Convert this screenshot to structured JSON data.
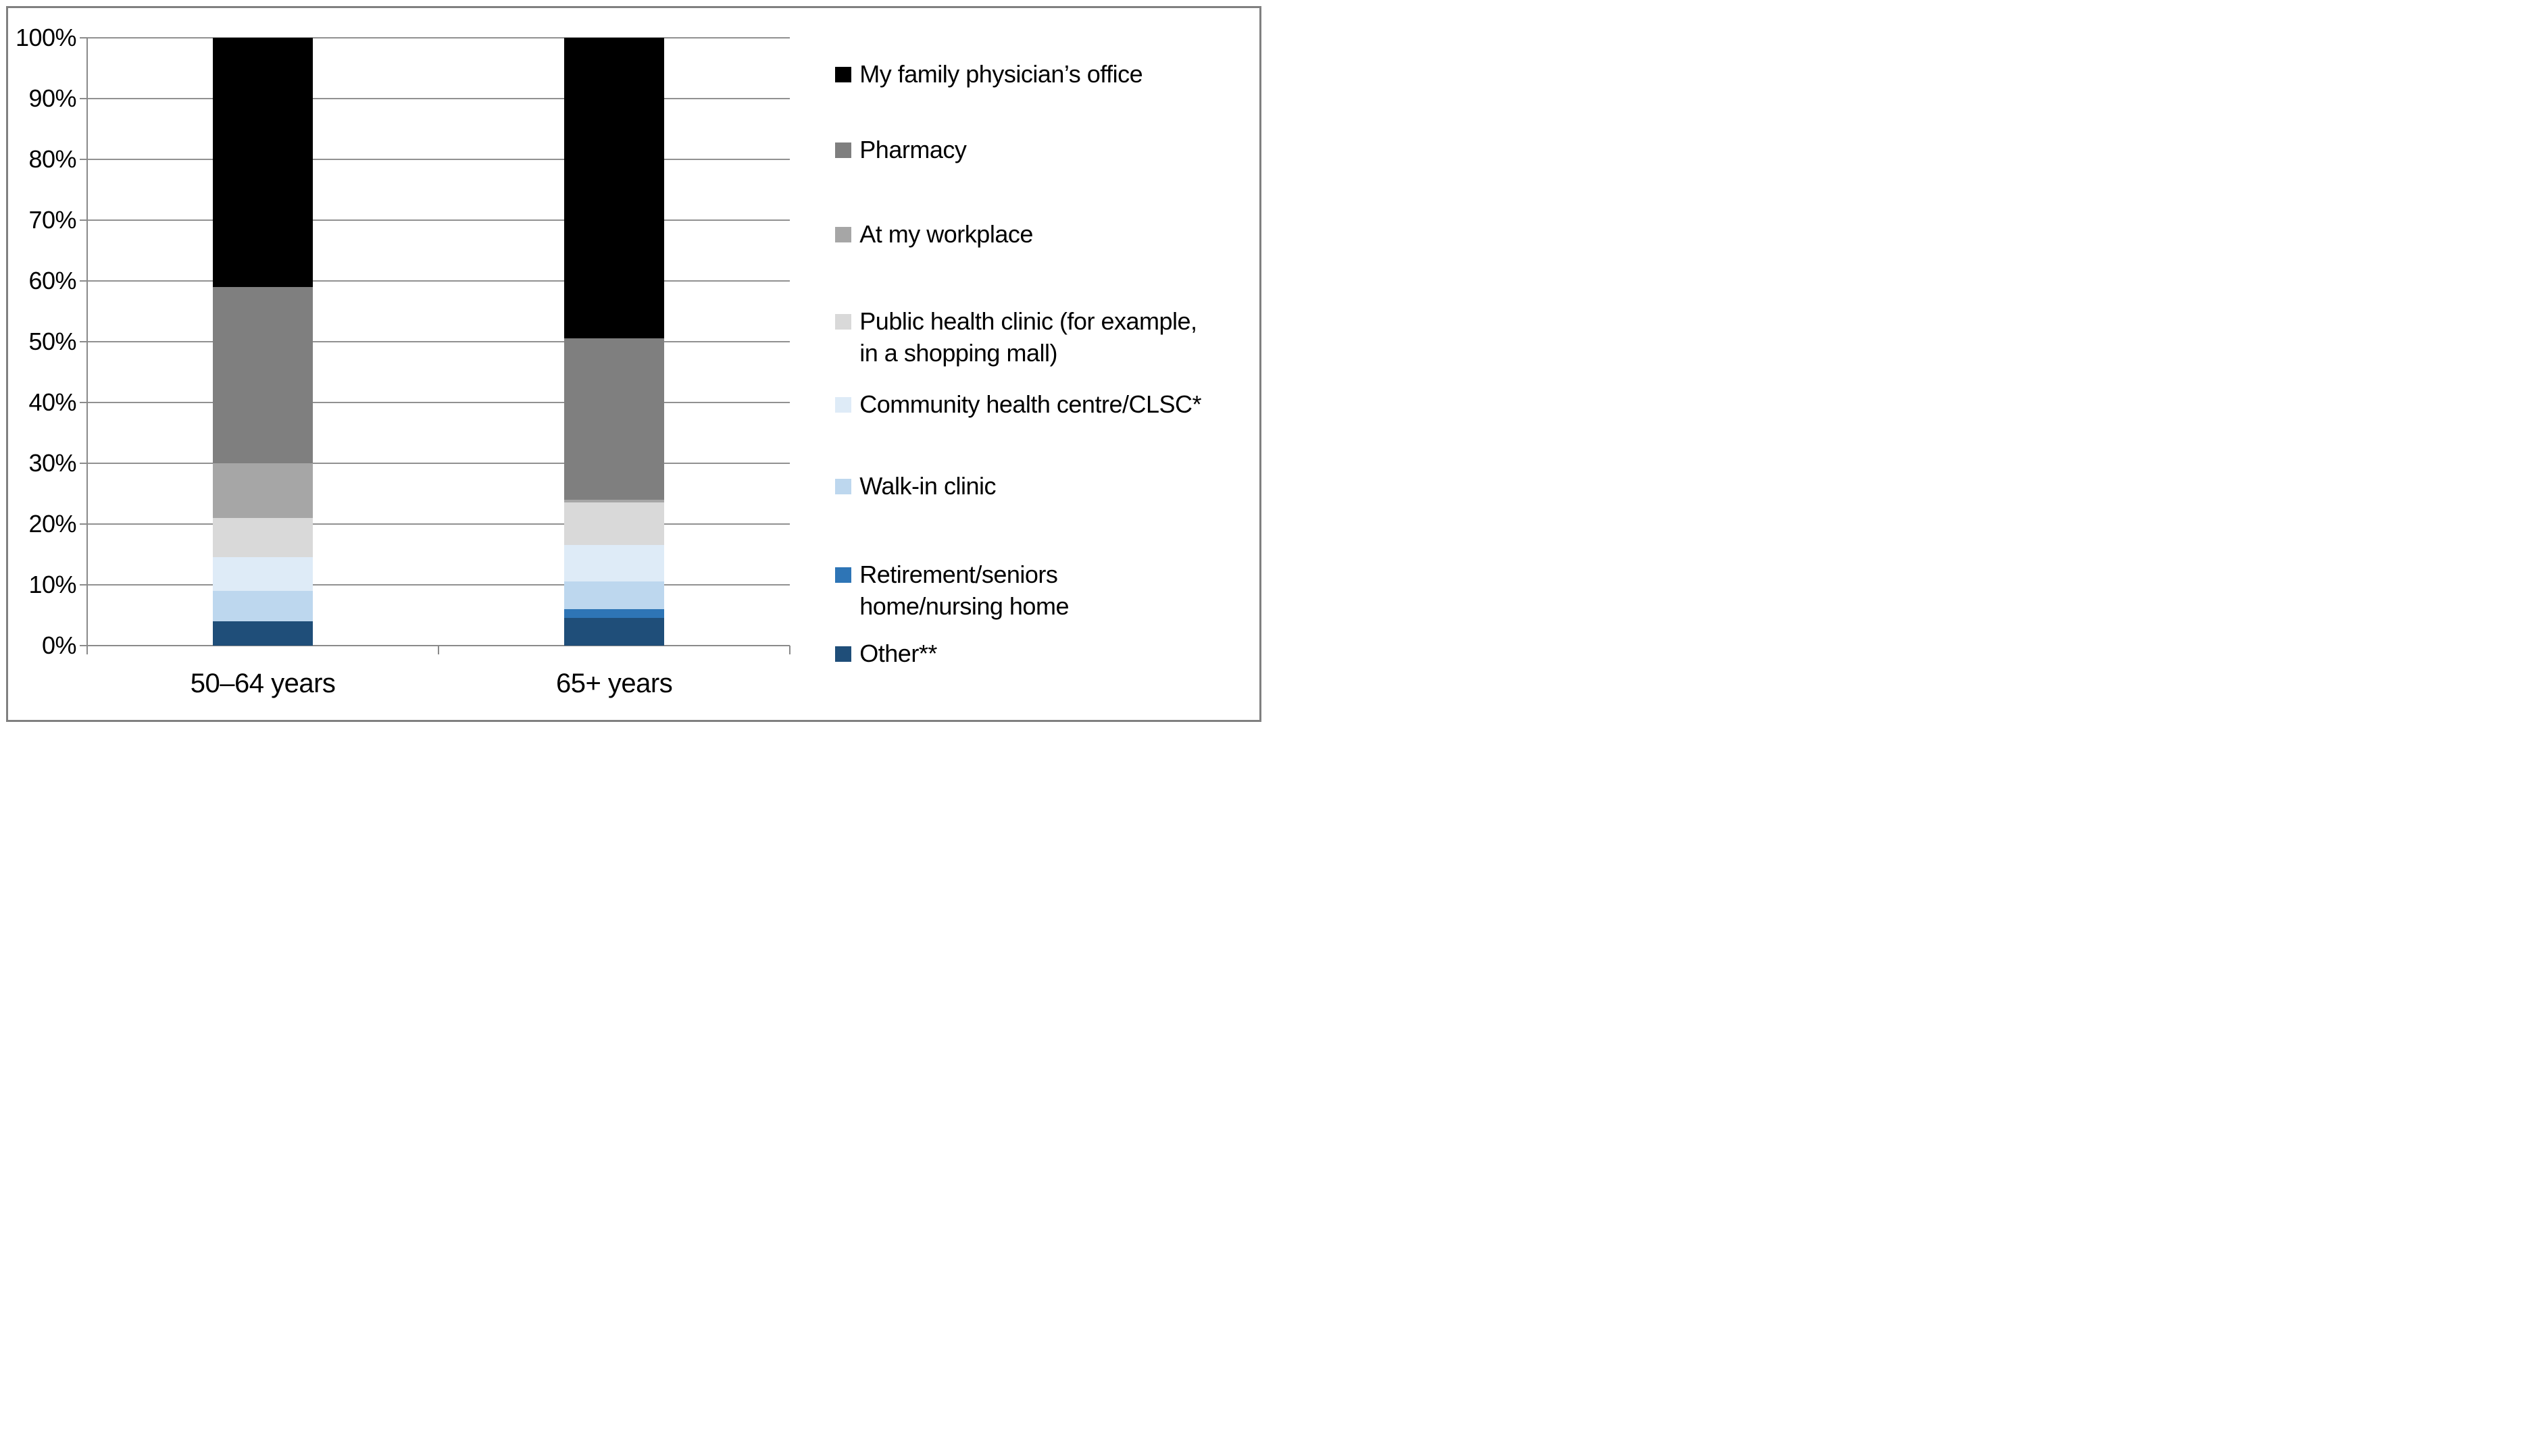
{
  "figure": {
    "background": "#FFFFFF",
    "border_color": "#808080",
    "gridline_color": "#919191",
    "axis_color": "#8A8A8A"
  },
  "chart_data": {
    "type": "bar",
    "subtype": "100%-stacked-column",
    "title": "",
    "xlabel": "",
    "ylabel": "",
    "ylim": [
      0,
      100
    ],
    "grid": "horizontal",
    "legend_position": "right",
    "categories": [
      "50–64 years",
      "65+ years"
    ],
    "y_ticks": [
      "100%",
      "90%",
      "80%",
      "70%",
      "60%",
      "50%",
      "40%",
      "30%",
      "20%",
      "10%",
      "0%"
    ],
    "series": [
      {
        "name": "My family physician’s office",
        "color": "#000000",
        "values": [
          41,
          49.5
        ]
      },
      {
        "name": "Pharmacy",
        "color": "#7F7F7F",
        "values": [
          29,
          26.5
        ]
      },
      {
        "name": "At my workplace",
        "color": "#A6A6A6",
        "values": [
          9,
          0.5
        ]
      },
      {
        "name": "Public health clinic (for example, in a shopping mall)",
        "color": "#D9D9D9",
        "values": [
          6.5,
          7
        ]
      },
      {
        "name": "Community health centre/CLSC*",
        "color": "#DEEBF7",
        "values": [
          5.5,
          6
        ]
      },
      {
        "name": "Walk-in clinic",
        "color": "#BDD7EE",
        "values": [
          5,
          4.5
        ]
      },
      {
        "name": "Retirement/seniors home/nursing home",
        "color": "#2E75B6",
        "values": [
          0,
          1.5
        ]
      },
      {
        "name": "Other**",
        "color": "#1F4E79",
        "values": [
          4,
          4.5
        ]
      }
    ]
  },
  "legend": {
    "items": [
      {
        "color": "#000000",
        "lines": [
          "My family physician’s office"
        ]
      },
      {
        "color": "#7F7F7F",
        "lines": [
          "Pharmacy"
        ]
      },
      {
        "color": "#A6A6A6",
        "lines": [
          "At my workplace"
        ]
      },
      {
        "color": "#D9D9D9",
        "lines": [
          "Public health clinic (for example,",
          "in a shopping mall)"
        ]
      },
      {
        "color": "#DEEBF7",
        "lines": [
          "Community health centre/CLSC*"
        ]
      },
      {
        "color": "#BDD7EE",
        "lines": [
          "Walk-in clinic"
        ]
      },
      {
        "color": "#2E75B6",
        "lines": [
          "Retirement/seniors",
          "home/nursing home"
        ]
      },
      {
        "color": "#1F4E79",
        "lines": [
          "Other**"
        ]
      }
    ]
  },
  "x_axis": {
    "labels": [
      "50–64 years",
      "65+ years"
    ]
  }
}
